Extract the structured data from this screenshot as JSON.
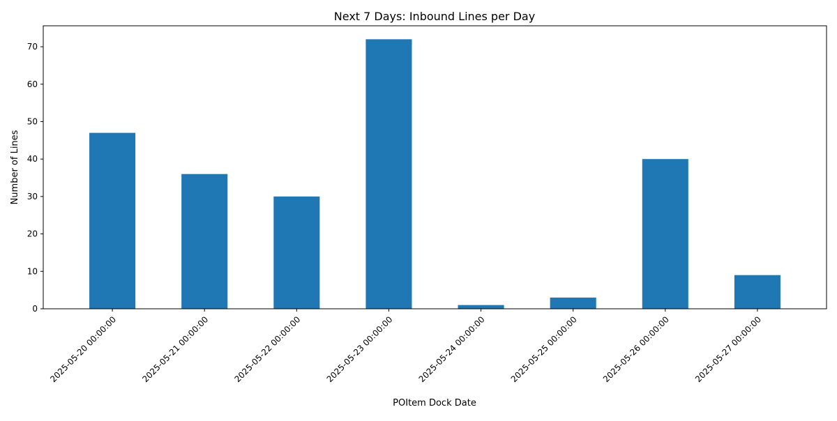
{
  "chart_data": {
    "type": "bar",
    "title": "Next 7 Days: Inbound Lines per Day",
    "xlabel": "POItem Dock Date",
    "ylabel": "Number of Lines",
    "categories": [
      "2025-05-20 00:00:00",
      "2025-05-21 00:00:00",
      "2025-05-22 00:00:00",
      "2025-05-23 00:00:00",
      "2025-05-24 00:00:00",
      "2025-05-25 00:00:00",
      "2025-05-26 00:00:00",
      "2025-05-27 00:00:00"
    ],
    "values": [
      47,
      36,
      30,
      72,
      1,
      3,
      40,
      9
    ],
    "ylim": [
      0,
      75.6
    ],
    "yticks": [
      0,
      10,
      20,
      30,
      40,
      50,
      60,
      70
    ],
    "bar_color": "#1f77b4",
    "grid": false,
    "legend": "none"
  }
}
